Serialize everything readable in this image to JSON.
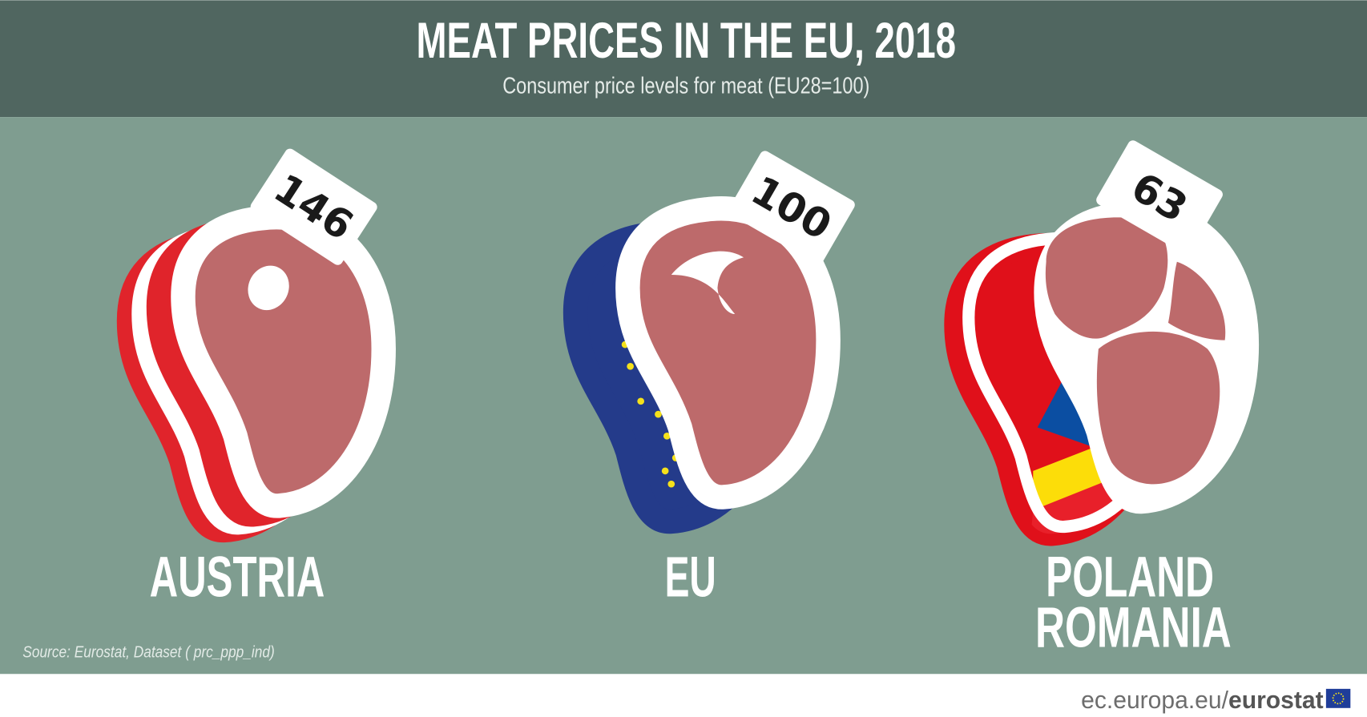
{
  "header": {
    "title": "MEAT PRICES IN THE EU, 2018",
    "subtitle": "Consumer price levels for meat (EU28=100)"
  },
  "chart_data": {
    "type": "bar",
    "title": "MEAT PRICES IN THE EU, 2018",
    "subtitle": "Consumer price levels for meat (EU28=100)",
    "categories": [
      "AUSTRIA",
      "EU",
      "POLAND ROMANIA"
    ],
    "labels": [
      [
        "AUSTRIA"
      ],
      [
        "EU"
      ],
      [
        "POLAND",
        "ROMANIA"
      ]
    ],
    "values": [
      146,
      100,
      63
    ],
    "value_labels": [
      "146",
      "100",
      "63"
    ]
  },
  "labels": {
    "austria": "AUSTRIA",
    "eu": "EU",
    "poland": "POLAND",
    "romania": "ROMANIA"
  },
  "source": "Source: Eurostat, Dataset ( prc_ppp_ind)",
  "footer": {
    "site": "ec.europa.eu/",
    "brand": "eurostat",
    "logo": "eu-flag-icon"
  },
  "colors": {
    "header_bg": "#506660",
    "panel_bg": "#7f9d90",
    "meat": "#bd6a6b",
    "austria_red": "#e0242b",
    "eu_blue": "#243b8a",
    "eu_yellow": "#f5e11b",
    "romania_blue": "#0b4ea2",
    "romania_yellow": "#fcdd09",
    "romania_red": "#e8202a"
  }
}
